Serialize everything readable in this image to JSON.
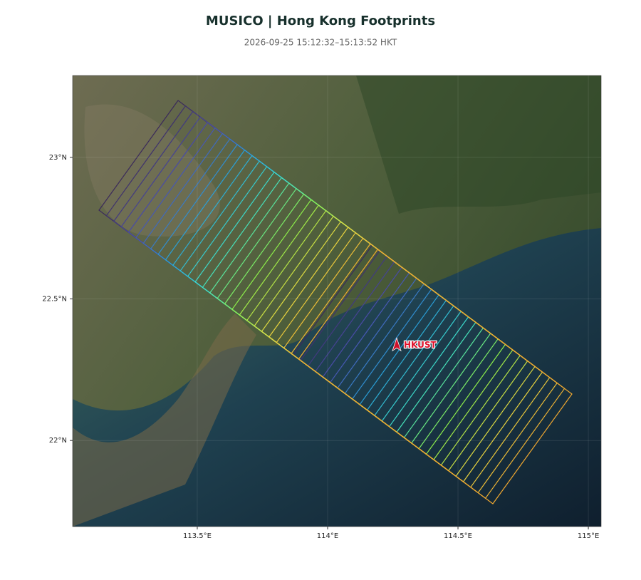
{
  "map": {
    "title": "MUSICO | Hong Kong Footprints",
    "subtitle": "2026-09-25 15:12:32–15:13:52 HKT",
    "xlim": [
      113.022,
      115.049
    ],
    "ylim": [
      21.696,
      23.289
    ],
    "xticks": [
      {
        "value": 113.5,
        "label": "113.5°E"
      },
      {
        "value": 114,
        "label": "114°E"
      },
      {
        "value": 114.5,
        "label": "114.5°E"
      },
      {
        "value": 115,
        "label": "115°E"
      }
    ],
    "yticks": [
      {
        "value": 22,
        "label": "22°N"
      },
      {
        "value": 22.5,
        "label": "22.5°N"
      },
      {
        "value": 23,
        "label": "23°N"
      }
    ],
    "marker": {
      "label": "HKUST",
      "lon": 114.265,
      "lat": 22.337
    }
  }
}
